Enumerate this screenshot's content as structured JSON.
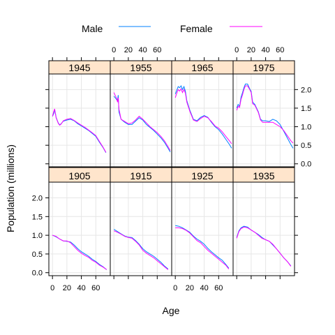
{
  "chart_data": {
    "type": "line",
    "xlabel": "Age",
    "ylabel": "Population (millions)",
    "x_ticks": [
      0,
      20,
      40,
      60
    ],
    "y_ticks": [
      0.0,
      0.5,
      1.0,
      1.5,
      2.0
    ],
    "y_tick_labels": [
      "0.0",
      "0.5",
      "1.0",
      "1.5",
      "2.0"
    ],
    "xlim": [
      -5,
      80
    ],
    "ylim": [
      -0.08,
      2.42
    ],
    "legend": {
      "position": "top",
      "entries": [
        {
          "name": "Male",
          "color": "#0080ff"
        },
        {
          "name": "Female",
          "color": "#ff00ff"
        }
      ]
    },
    "panels": [
      {
        "year": "1945",
        "male": [
          [
            0,
            1.28
          ],
          [
            2,
            1.36
          ],
          [
            3,
            1.46
          ],
          [
            4,
            1.38
          ],
          [
            5,
            1.25
          ],
          [
            8,
            1.1
          ],
          [
            10,
            1.05
          ],
          [
            12,
            1.08
          ],
          [
            15,
            1.15
          ],
          [
            20,
            1.18
          ],
          [
            25,
            1.2
          ],
          [
            30,
            1.16
          ],
          [
            35,
            1.08
          ],
          [
            40,
            1.02
          ],
          [
            45,
            0.96
          ],
          [
            50,
            0.9
          ],
          [
            55,
            0.82
          ],
          [
            60,
            0.74
          ],
          [
            65,
            0.58
          ],
          [
            70,
            0.44
          ],
          [
            74,
            0.3
          ]
        ],
        "female": [
          [
            0,
            1.28
          ],
          [
            2,
            1.42
          ],
          [
            3,
            1.48
          ],
          [
            4,
            1.36
          ],
          [
            5,
            1.24
          ],
          [
            8,
            1.09
          ],
          [
            10,
            1.04
          ],
          [
            12,
            1.07
          ],
          [
            15,
            1.16
          ],
          [
            20,
            1.2
          ],
          [
            25,
            1.22
          ],
          [
            30,
            1.17
          ],
          [
            35,
            1.1
          ],
          [
            40,
            1.04
          ],
          [
            45,
            0.98
          ],
          [
            50,
            0.91
          ],
          [
            55,
            0.84
          ],
          [
            60,
            0.76
          ],
          [
            65,
            0.6
          ],
          [
            70,
            0.45
          ],
          [
            74,
            0.31
          ]
        ]
      },
      {
        "year": "1955",
        "male": [
          [
            0,
            1.82
          ],
          [
            2,
            1.78
          ],
          [
            4,
            1.72
          ],
          [
            5,
            1.7
          ],
          [
            6,
            1.85
          ],
          [
            7,
            1.4
          ],
          [
            10,
            1.2
          ],
          [
            15,
            1.12
          ],
          [
            20,
            1.06
          ],
          [
            25,
            1.06
          ],
          [
            30,
            1.15
          ],
          [
            35,
            1.24
          ],
          [
            40,
            1.18
          ],
          [
            45,
            1.06
          ],
          [
            50,
            0.98
          ],
          [
            55,
            0.9
          ],
          [
            60,
            0.8
          ],
          [
            65,
            0.7
          ],
          [
            70,
            0.58
          ],
          [
            75,
            0.42
          ],
          [
            78,
            0.32
          ]
        ],
        "female": [
          [
            0,
            1.92
          ],
          [
            2,
            1.84
          ],
          [
            4,
            1.75
          ],
          [
            5,
            1.66
          ],
          [
            6,
            1.78
          ],
          [
            7,
            1.48
          ],
          [
            10,
            1.2
          ],
          [
            15,
            1.14
          ],
          [
            20,
            1.08
          ],
          [
            25,
            1.1
          ],
          [
            30,
            1.18
          ],
          [
            35,
            1.28
          ],
          [
            40,
            1.2
          ],
          [
            45,
            1.1
          ],
          [
            50,
            1.0
          ],
          [
            55,
            0.92
          ],
          [
            60,
            0.84
          ],
          [
            65,
            0.74
          ],
          [
            70,
            0.62
          ],
          [
            75,
            0.46
          ],
          [
            78,
            0.36
          ]
        ]
      },
      {
        "year": "1965",
        "male": [
          [
            0,
            1.88
          ],
          [
            2,
            1.98
          ],
          [
            4,
            2.08
          ],
          [
            6,
            2.05
          ],
          [
            8,
            2.1
          ],
          [
            10,
            2.0
          ],
          [
            12,
            2.08
          ],
          [
            14,
            1.95
          ],
          [
            16,
            1.7
          ],
          [
            20,
            1.45
          ],
          [
            25,
            1.2
          ],
          [
            30,
            1.16
          ],
          [
            35,
            1.25
          ],
          [
            40,
            1.3
          ],
          [
            45,
            1.25
          ],
          [
            50,
            1.12
          ],
          [
            55,
            1.0
          ],
          [
            60,
            0.92
          ],
          [
            65,
            0.8
          ],
          [
            70,
            0.66
          ],
          [
            75,
            0.52
          ],
          [
            78,
            0.42
          ]
        ],
        "female": [
          [
            0,
            1.78
          ],
          [
            2,
            1.9
          ],
          [
            4,
            2.0
          ],
          [
            6,
            1.96
          ],
          [
            8,
            2.02
          ],
          [
            10,
            1.92
          ],
          [
            12,
            2.0
          ],
          [
            14,
            1.9
          ],
          [
            16,
            1.66
          ],
          [
            20,
            1.42
          ],
          [
            25,
            1.18
          ],
          [
            30,
            1.14
          ],
          [
            35,
            1.22
          ],
          [
            40,
            1.28
          ],
          [
            45,
            1.24
          ],
          [
            50,
            1.14
          ],
          [
            55,
            1.02
          ],
          [
            60,
            0.96
          ],
          [
            65,
            0.86
          ],
          [
            70,
            0.74
          ],
          [
            75,
            0.62
          ],
          [
            78,
            0.54
          ]
        ]
      },
      {
        "year": "1975",
        "male": [
          [
            0,
            1.5
          ],
          [
            2,
            1.6
          ],
          [
            4,
            1.55
          ],
          [
            6,
            1.8
          ],
          [
            8,
            1.92
          ],
          [
            10,
            2.05
          ],
          [
            12,
            2.15
          ],
          [
            15,
            2.15
          ],
          [
            18,
            2.02
          ],
          [
            20,
            1.95
          ],
          [
            22,
            1.66
          ],
          [
            25,
            1.6
          ],
          [
            30,
            1.4
          ],
          [
            33,
            1.2
          ],
          [
            36,
            1.16
          ],
          [
            40,
            1.16
          ],
          [
            45,
            1.14
          ],
          [
            50,
            1.2
          ],
          [
            55,
            1.16
          ],
          [
            60,
            1.06
          ],
          [
            65,
            0.88
          ],
          [
            70,
            0.7
          ],
          [
            75,
            0.52
          ],
          [
            78,
            0.42
          ]
        ],
        "female": [
          [
            0,
            1.44
          ],
          [
            2,
            1.55
          ],
          [
            4,
            1.52
          ],
          [
            6,
            1.74
          ],
          [
            8,
            1.86
          ],
          [
            10,
            2.0
          ],
          [
            12,
            2.1
          ],
          [
            15,
            2.1
          ],
          [
            18,
            2.0
          ],
          [
            20,
            1.92
          ],
          [
            22,
            1.62
          ],
          [
            25,
            1.58
          ],
          [
            30,
            1.38
          ],
          [
            33,
            1.18
          ],
          [
            36,
            1.12
          ],
          [
            40,
            1.12
          ],
          [
            45,
            1.12
          ],
          [
            50,
            1.12
          ],
          [
            55,
            1.06
          ],
          [
            60,
            1.0
          ],
          [
            65,
            0.9
          ],
          [
            70,
            0.76
          ],
          [
            75,
            0.62
          ],
          [
            78,
            0.56
          ]
        ]
      },
      {
        "year": "1905",
        "male": [
          [
            0,
            1.0
          ],
          [
            5,
            0.96
          ],
          [
            10,
            0.9
          ],
          [
            15,
            0.85
          ],
          [
            20,
            0.84
          ],
          [
            25,
            0.82
          ],
          [
            30,
            0.74
          ],
          [
            35,
            0.64
          ],
          [
            40,
            0.56
          ],
          [
            45,
            0.5
          ],
          [
            50,
            0.44
          ],
          [
            55,
            0.36
          ],
          [
            60,
            0.3
          ],
          [
            65,
            0.22
          ],
          [
            70,
            0.16
          ],
          [
            75,
            0.08
          ]
        ],
        "female": [
          [
            0,
            1.0
          ],
          [
            5,
            0.97
          ],
          [
            10,
            0.9
          ],
          [
            15,
            0.85
          ],
          [
            20,
            0.85
          ],
          [
            25,
            0.8
          ],
          [
            30,
            0.7
          ],
          [
            35,
            0.6
          ],
          [
            40,
            0.52
          ],
          [
            45,
            0.46
          ],
          [
            50,
            0.41
          ],
          [
            55,
            0.33
          ],
          [
            60,
            0.28
          ],
          [
            65,
            0.2
          ],
          [
            70,
            0.15
          ],
          [
            75,
            0.08
          ]
        ]
      },
      {
        "year": "1915",
        "male": [
          [
            0,
            1.16
          ],
          [
            5,
            1.1
          ],
          [
            10,
            1.04
          ],
          [
            15,
            0.98
          ],
          [
            20,
            0.95
          ],
          [
            25,
            0.94
          ],
          [
            30,
            0.86
          ],
          [
            35,
            0.76
          ],
          [
            40,
            0.64
          ],
          [
            45,
            0.56
          ],
          [
            50,
            0.5
          ],
          [
            55,
            0.44
          ],
          [
            60,
            0.36
          ],
          [
            65,
            0.28
          ],
          [
            70,
            0.18
          ],
          [
            75,
            0.1
          ]
        ],
        "female": [
          [
            0,
            1.12
          ],
          [
            5,
            1.08
          ],
          [
            10,
            1.03
          ],
          [
            15,
            0.97
          ],
          [
            20,
            0.94
          ],
          [
            25,
            0.92
          ],
          [
            30,
            0.84
          ],
          [
            35,
            0.74
          ],
          [
            40,
            0.6
          ],
          [
            45,
            0.52
          ],
          [
            50,
            0.46
          ],
          [
            55,
            0.4
          ],
          [
            60,
            0.32
          ],
          [
            65,
            0.24
          ],
          [
            70,
            0.16
          ],
          [
            75,
            0.08
          ]
        ]
      },
      {
        "year": "1925",
        "male": [
          [
            0,
            1.26
          ],
          [
            5,
            1.24
          ],
          [
            10,
            1.2
          ],
          [
            15,
            1.14
          ],
          [
            20,
            1.08
          ],
          [
            25,
            0.98
          ],
          [
            30,
            0.9
          ],
          [
            35,
            0.84
          ],
          [
            40,
            0.76
          ],
          [
            45,
            0.65
          ],
          [
            50,
            0.56
          ],
          [
            55,
            0.48
          ],
          [
            60,
            0.4
          ],
          [
            65,
            0.33
          ],
          [
            70,
            0.22
          ],
          [
            74,
            0.12
          ]
        ],
        "female": [
          [
            0,
            1.2
          ],
          [
            5,
            1.2
          ],
          [
            10,
            1.18
          ],
          [
            15,
            1.13
          ],
          [
            20,
            1.06
          ],
          [
            25,
            0.96
          ],
          [
            30,
            0.86
          ],
          [
            35,
            0.8
          ],
          [
            40,
            0.7
          ],
          [
            45,
            0.6
          ],
          [
            50,
            0.52
          ],
          [
            55,
            0.44
          ],
          [
            60,
            0.36
          ],
          [
            65,
            0.28
          ],
          [
            70,
            0.2
          ],
          [
            74,
            0.1
          ]
        ]
      },
      {
        "year": "1935",
        "male": [
          [
            0,
            0.94
          ],
          [
            3,
            1.12
          ],
          [
            6,
            1.2
          ],
          [
            10,
            1.24
          ],
          [
            15,
            1.22
          ],
          [
            20,
            1.14
          ],
          [
            25,
            1.08
          ],
          [
            30,
            1.02
          ],
          [
            35,
            0.94
          ],
          [
            40,
            0.88
          ],
          [
            45,
            0.84
          ],
          [
            50,
            0.74
          ],
          [
            55,
            0.64
          ],
          [
            60,
            0.52
          ],
          [
            65,
            0.4
          ],
          [
            70,
            0.3
          ],
          [
            75,
            0.18
          ]
        ],
        "female": [
          [
            0,
            0.92
          ],
          [
            3,
            1.1
          ],
          [
            6,
            1.18
          ],
          [
            10,
            1.22
          ],
          [
            15,
            1.2
          ],
          [
            20,
            1.14
          ],
          [
            25,
            1.08
          ],
          [
            30,
            1.0
          ],
          [
            35,
            0.92
          ],
          [
            40,
            0.88
          ],
          [
            45,
            0.84
          ],
          [
            50,
            0.76
          ],
          [
            55,
            0.64
          ],
          [
            60,
            0.52
          ],
          [
            65,
            0.4
          ],
          [
            70,
            0.3
          ],
          [
            75,
            0.17
          ]
        ]
      }
    ]
  }
}
